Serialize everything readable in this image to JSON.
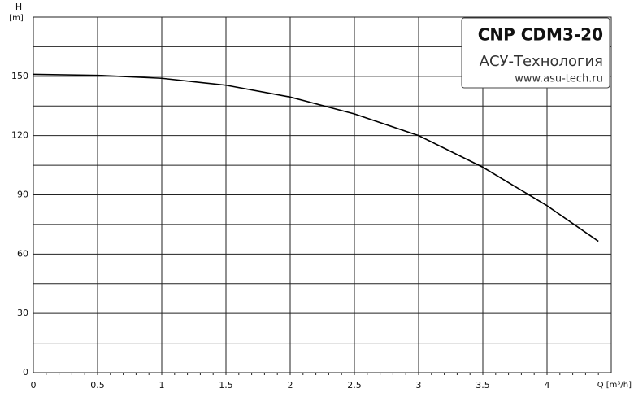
{
  "chart_data": {
    "type": "line",
    "y_label": "H",
    "y_unit": "[m]",
    "x_label": "Q [m³/h]",
    "box": {
      "title": "CNP CDM3-20",
      "company": "АСУ-Технология",
      "site": "www.asu-tech.ru"
    },
    "x": [
      0,
      0.5,
      1,
      1.5,
      2,
      2.5,
      3,
      3.5,
      4,
      4.4
    ],
    "series": [
      {
        "name": "CNP CDM3-20",
        "color": "#000000",
        "values": [
          151,
          150.5,
          149,
          145.5,
          139.5,
          131,
          120,
          104,
          84.5,
          66.5
        ]
      }
    ],
    "xlim": [
      0,
      4.5
    ],
    "ylim": [
      0,
      180
    ],
    "xticks": [
      0,
      0.5,
      1,
      1.5,
      2,
      2.5,
      3,
      3.5,
      4
    ],
    "yticks": [
      0,
      30,
      60,
      90,
      120,
      150
    ],
    "yminor": [
      15,
      45,
      75,
      105,
      135,
      165
    ],
    "grid": true
  }
}
